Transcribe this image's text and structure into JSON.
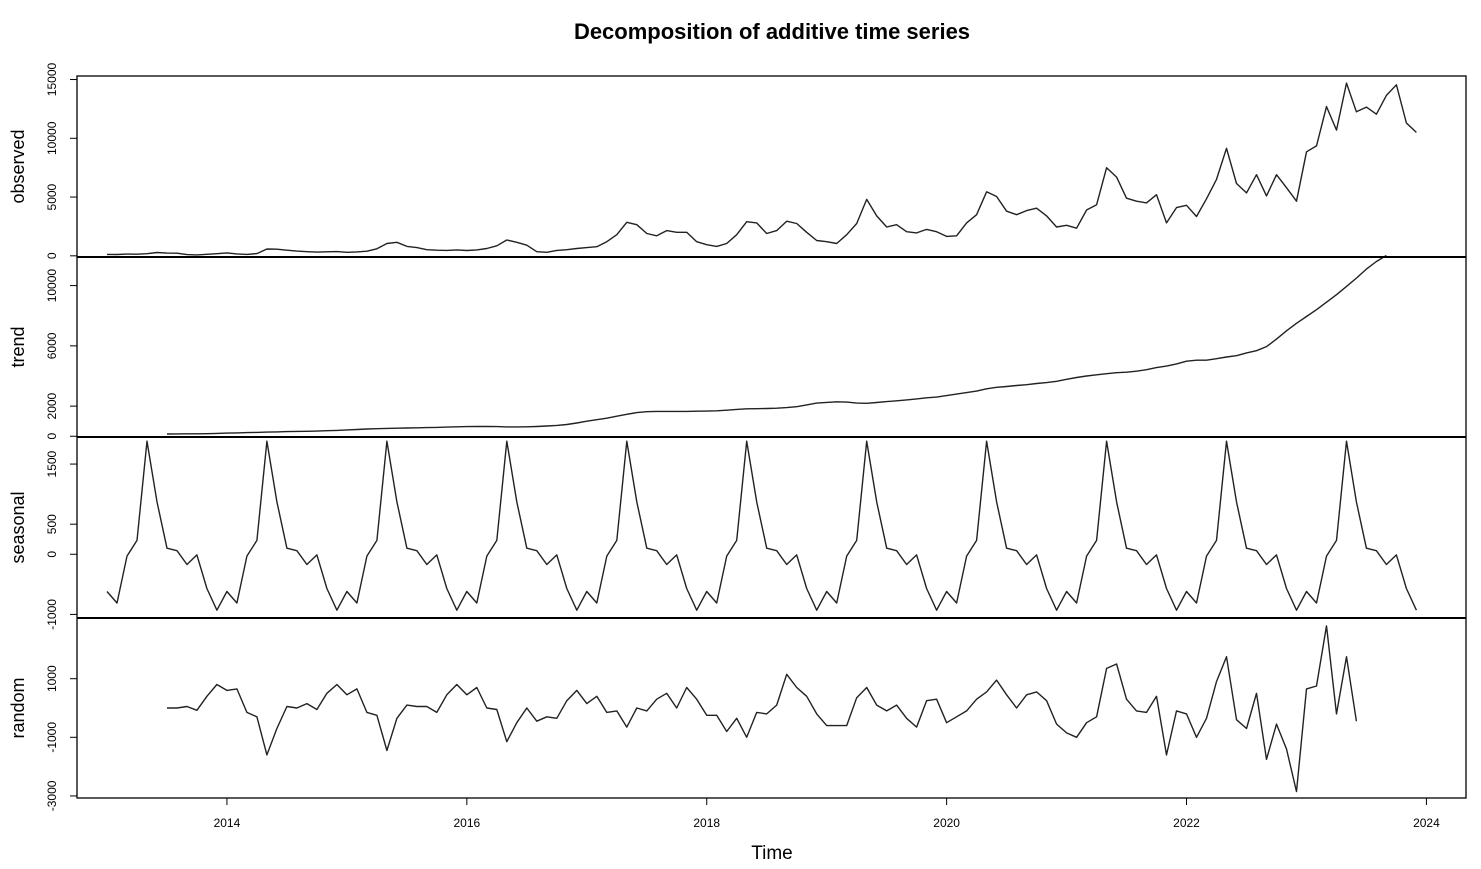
{
  "chart_data": {
    "type": "line",
    "title": "Decomposition of additive time series",
    "xlabel": "Time",
    "xlim": [
      2012.75,
      2024.33
    ],
    "xticks": [
      2014,
      2016,
      2018,
      2020,
      2022,
      2024
    ],
    "xtick_labels": [
      "2014",
      "2016",
      "2018",
      "2020",
      "2022",
      "2024"
    ],
    "frequency": 12,
    "panels": [
      {
        "name": "observed",
        "ylabel": "observed",
        "start": 2013.0,
        "ylim": [
          -100,
          15300
        ],
        "yticks": [
          0,
          5000,
          10000,
          15000
        ],
        "ytick_labels": [
          "0",
          "5000",
          "10000",
          "15000"
        ],
        "values": [
          120,
          110,
          150,
          140,
          180,
          280,
          230,
          220,
          100,
          80,
          130,
          180,
          250,
          160,
          120,
          190,
          580,
          560,
          480,
          400,
          350,
          320,
          340,
          360,
          300,
          330,
          390,
          600,
          1050,
          1150,
          800,
          700,
          520,
          480,
          460,
          500,
          450,
          500,
          620,
          850,
          1350,
          1150,
          900,
          350,
          300,
          460,
          520,
          620,
          700,
          780,
          1200,
          1800,
          2850,
          2650,
          1900,
          1700,
          2150,
          2000,
          2000,
          1200,
          950,
          800,
          1050,
          1800,
          2900,
          2800,
          1900,
          2150,
          2950,
          2750,
          2000,
          1300,
          1200,
          1050,
          1800,
          2750,
          4800,
          3400,
          2450,
          2650,
          2050,
          1950,
          2250,
          2050,
          1650,
          1700,
          2800,
          3500,
          5450,
          5050,
          3800,
          3500,
          3850,
          4050,
          3400,
          2450,
          2600,
          2350,
          3900,
          4350,
          7500,
          6700,
          4900,
          4650,
          4500,
          5200,
          2800,
          4100,
          4300,
          3350,
          4850,
          6500,
          9150,
          6150,
          5350,
          6900,
          5100,
          6900,
          5800,
          4650,
          8850,
          9350,
          12700,
          10700,
          14700,
          12250,
          12650,
          12050,
          13650,
          14550,
          11300,
          10500
        ]
      },
      {
        "name": "trend",
        "ylabel": "trend",
        "start": 2013.5,
        "ylim": [
          -50,
          11900
        ],
        "yticks": [
          0,
          2000,
          6000,
          10000
        ],
        "ytick_labels": [
          "0",
          "2000",
          "6000",
          "10000"
        ],
        "values": [
          150,
          155,
          160,
          165,
          170,
          190,
          210,
          225,
          240,
          255,
          275,
          290,
          310,
          320,
          330,
          345,
          365,
          390,
          420,
          450,
          480,
          500,
          520,
          535,
          545,
          560,
          575,
          590,
          610,
          630,
          640,
          650,
          650,
          640,
          620,
          620,
          630,
          650,
          680,
          720,
          780,
          880,
          1000,
          1100,
          1200,
          1330,
          1460,
          1570,
          1630,
          1650,
          1650,
          1650,
          1650,
          1660,
          1670,
          1690,
          1730,
          1780,
          1820,
          1830,
          1840,
          1860,
          1900,
          1960,
          2080,
          2200,
          2250,
          2290,
          2270,
          2200,
          2190,
          2240,
          2300,
          2350,
          2410,
          2480,
          2550,
          2600,
          2700,
          2800,
          2900,
          3000,
          3150,
          3250,
          3300,
          3370,
          3420,
          3500,
          3560,
          3650,
          3780,
          3900,
          4000,
          4080,
          4150,
          4220,
          4250,
          4320,
          4420,
          4560,
          4660,
          4800,
          4980,
          5050,
          5050,
          5150,
          5260,
          5350,
          5530,
          5680,
          5950,
          6450,
          7000,
          7500,
          7950,
          8400,
          8900,
          9400,
          9950,
          10500,
          11100,
          11600,
          12000
        ]
      },
      {
        "name": "seasonal",
        "ylabel": "seasonal",
        "start": 2013.0,
        "ylim": [
          -1060,
          1950
        ],
        "yticks": [
          -1000,
          0,
          500,
          1500
        ],
        "ytick_labels": [
          "-1000",
          "0",
          "500",
          "1500"
        ],
        "values": [
          -620,
          -810,
          -30,
          230,
          1880,
          870,
          100,
          60,
          -170,
          -10,
          -570,
          -930,
          -620,
          -810,
          -30,
          230,
          1880,
          870,
          100,
          60,
          -170,
          -10,
          -570,
          -930,
          -620,
          -810,
          -30,
          230,
          1880,
          870,
          100,
          60,
          -170,
          -10,
          -570,
          -930,
          -620,
          -810,
          -30,
          230,
          1880,
          870,
          100,
          60,
          -170,
          -10,
          -570,
          -930,
          -620,
          -810,
          -30,
          230,
          1880,
          870,
          100,
          60,
          -170,
          -10,
          -570,
          -930,
          -620,
          -810,
          -30,
          230,
          1880,
          870,
          100,
          60,
          -170,
          -10,
          -570,
          -930,
          -620,
          -810,
          -30,
          230,
          1880,
          870,
          100,
          60,
          -170,
          -10,
          -570,
          -930,
          -620,
          -810,
          -30,
          230,
          1880,
          870,
          100,
          60,
          -170,
          -10,
          -570,
          -930,
          -620,
          -810,
          -30,
          230,
          1880,
          870,
          100,
          60,
          -170,
          -10,
          -570,
          -930,
          -620,
          -810,
          -30,
          230,
          1880,
          870,
          100,
          60,
          -170,
          -10,
          -570,
          -930,
          -620,
          -810,
          -30,
          230,
          1880,
          870,
          100,
          60,
          -170,
          -10,
          -570,
          -930
        ]
      },
      {
        "name": "random",
        "ylabel": "random",
        "start": 2013.5,
        "ylim": [
          -3070,
          3070
        ],
        "yticks": [
          -3000,
          -1000,
          1000
        ],
        "ytick_labels": [
          "-3000",
          "-1000",
          "1000"
        ],
        "values": [
          0,
          0,
          50,
          -80,
          400,
          800,
          600,
          650,
          -150,
          -300,
          -1600,
          -700,
          50,
          0,
          150,
          -50,
          500,
          800,
          450,
          650,
          -150,
          -250,
          -1450,
          -350,
          100,
          50,
          50,
          -150,
          450,
          800,
          450,
          700,
          0,
          -50,
          -1150,
          -500,
          0,
          -450,
          -300,
          -350,
          250,
          600,
          150,
          400,
          -150,
          -100,
          -650,
          0,
          -100,
          300,
          500,
          0,
          700,
          300,
          -250,
          -250,
          -800,
          -350,
          -1000,
          -150,
          -200,
          100,
          1150,
          700,
          400,
          -200,
          -600,
          -600,
          -600,
          350,
          700,
          100,
          -100,
          100,
          -350,
          -650,
          250,
          300,
          -500,
          -300,
          -100,
          300,
          550,
          950,
          450,
          0,
          450,
          550,
          250,
          -550,
          -850,
          -1000,
          -500,
          -300,
          1350,
          1500,
          300,
          -100,
          -150,
          400,
          -1600,
          -100,
          -200,
          -1000,
          -350,
          900,
          1750,
          -400,
          -700,
          500,
          -1750,
          -550,
          -1400,
          -2850,
          650,
          750,
          2800,
          -200,
          1750,
          -450
        ]
      }
    ]
  }
}
